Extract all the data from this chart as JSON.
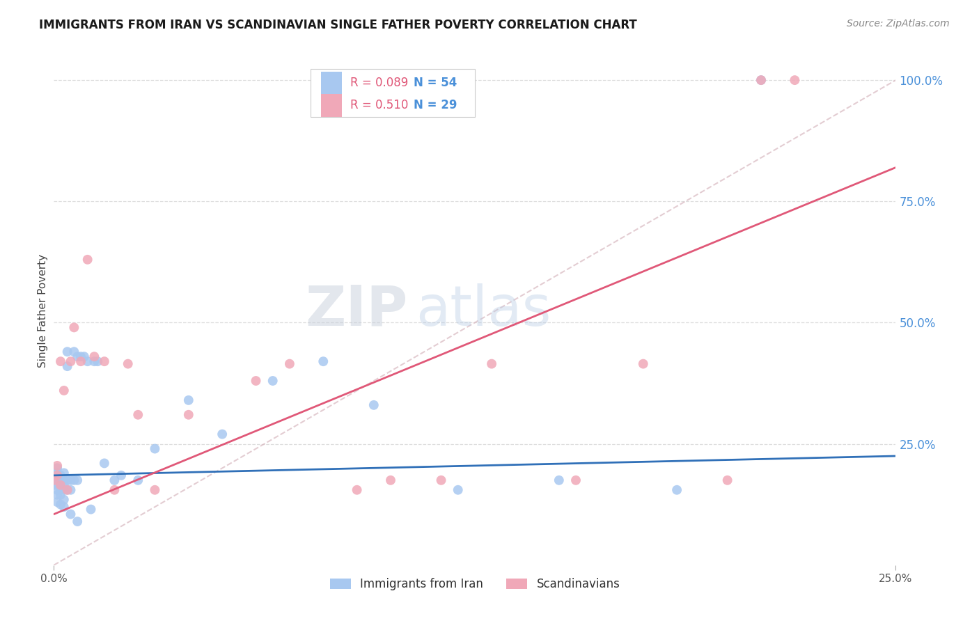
{
  "title": "IMMIGRANTS FROM IRAN VS SCANDINAVIAN SINGLE FATHER POVERTY CORRELATION CHART",
  "source": "Source: ZipAtlas.com",
  "ylabel": "Single Father Poverty",
  "legend_label1": "Immigrants from Iran",
  "legend_label2": "Scandinavians",
  "r1": "0.089",
  "n1": "54",
  "r2": "0.510",
  "n2": "29",
  "color_iran": "#a8c8f0",
  "color_scand": "#f0a8b8",
  "color_line_iran": "#3070b8",
  "color_line_scand": "#e05878",
  "color_diag": "#d8b8c0",
  "watermark_zip": "ZIP",
  "watermark_atlas": "atlas",
  "iran_x": [
    0.0,
    0.0,
    0.0,
    0.001,
    0.001,
    0.001,
    0.001,
    0.001,
    0.001,
    0.001,
    0.002,
    0.002,
    0.002,
    0.002,
    0.002,
    0.002,
    0.003,
    0.003,
    0.003,
    0.003,
    0.003,
    0.003,
    0.004,
    0.004,
    0.004,
    0.004,
    0.005,
    0.005,
    0.005,
    0.006,
    0.006,
    0.007,
    0.007,
    0.007,
    0.008,
    0.009,
    0.01,
    0.011,
    0.012,
    0.013,
    0.015,
    0.018,
    0.02,
    0.025,
    0.03,
    0.04,
    0.05,
    0.065,
    0.08,
    0.095,
    0.12,
    0.15,
    0.185,
    0.21
  ],
  "iran_y": [
    0.175,
    0.165,
    0.185,
    0.2,
    0.19,
    0.175,
    0.165,
    0.155,
    0.145,
    0.13,
    0.185,
    0.175,
    0.165,
    0.155,
    0.145,
    0.125,
    0.19,
    0.175,
    0.165,
    0.155,
    0.135,
    0.12,
    0.44,
    0.41,
    0.175,
    0.155,
    0.175,
    0.155,
    0.105,
    0.44,
    0.175,
    0.43,
    0.175,
    0.09,
    0.43,
    0.43,
    0.42,
    0.115,
    0.42,
    0.42,
    0.21,
    0.175,
    0.185,
    0.175,
    0.24,
    0.34,
    0.27,
    0.38,
    0.42,
    0.33,
    0.155,
    0.175,
    0.155,
    1.0
  ],
  "scand_x": [
    0.0,
    0.001,
    0.001,
    0.002,
    0.002,
    0.003,
    0.004,
    0.005,
    0.006,
    0.008,
    0.01,
    0.012,
    0.015,
    0.018,
    0.022,
    0.025,
    0.03,
    0.04,
    0.06,
    0.07,
    0.09,
    0.1,
    0.115,
    0.13,
    0.155,
    0.175,
    0.2,
    0.21,
    0.22
  ],
  "scand_y": [
    0.175,
    0.185,
    0.205,
    0.165,
    0.42,
    0.36,
    0.155,
    0.42,
    0.49,
    0.42,
    0.63,
    0.43,
    0.42,
    0.155,
    0.415,
    0.31,
    0.155,
    0.31,
    0.38,
    0.415,
    0.155,
    0.175,
    0.175,
    0.415,
    0.175,
    0.415,
    0.175,
    1.0,
    1.0
  ],
  "xlim": [
    0.0,
    0.25
  ],
  "ylim": [
    0.0,
    1.05
  ],
  "background_color": "#ffffff",
  "grid_color": "#dddddd",
  "tick_color_right": "#4a90d9",
  "title_fontsize": 12,
  "source_fontsize": 10
}
